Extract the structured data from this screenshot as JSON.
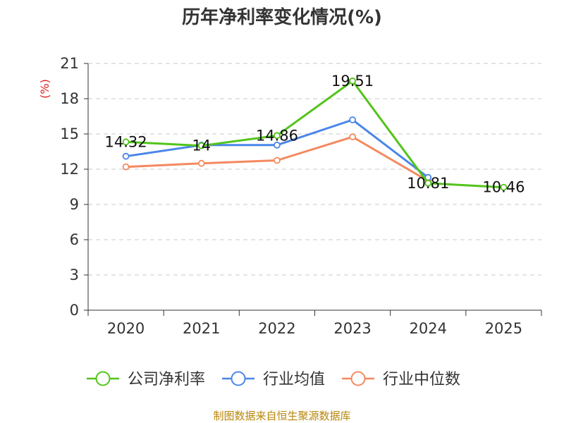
{
  "chart_data": {
    "type": "line",
    "title": "历年净利率变化情况(%)",
    "ylabel": "(%)",
    "xlabel": "",
    "categories": [
      "2020",
      "2021",
      "2022",
      "2023",
      "2024",
      "2025"
    ],
    "ylim": [
      0,
      21
    ],
    "yticks": [
      0,
      3,
      6,
      9,
      12,
      15,
      18,
      21
    ],
    "ytick_labels": [
      "0",
      "3",
      "6",
      "9",
      "12",
      "15",
      "18",
      "21"
    ],
    "grid": true,
    "legend_position": "bottom",
    "series": [
      {
        "name": "公司净利率",
        "color": "#52c41a",
        "values": [
          14.32,
          14,
          14.86,
          19.51,
          10.81,
          10.46
        ],
        "labels": [
          "14.32",
          "14",
          "14.86",
          "19.51",
          "10.81",
          "10.46"
        ]
      },
      {
        "name": "行业均值",
        "color": "#4a86e8",
        "values": [
          13.1,
          14.05,
          14.05,
          16.2,
          11.3,
          null
        ]
      },
      {
        "name": "行业中位数",
        "color": "#f4895f",
        "values": [
          12.2,
          12.5,
          12.75,
          14.75,
          11.0,
          null
        ]
      }
    ]
  },
  "footer": {
    "source": "制图数据来自恒生聚源数据库"
  }
}
